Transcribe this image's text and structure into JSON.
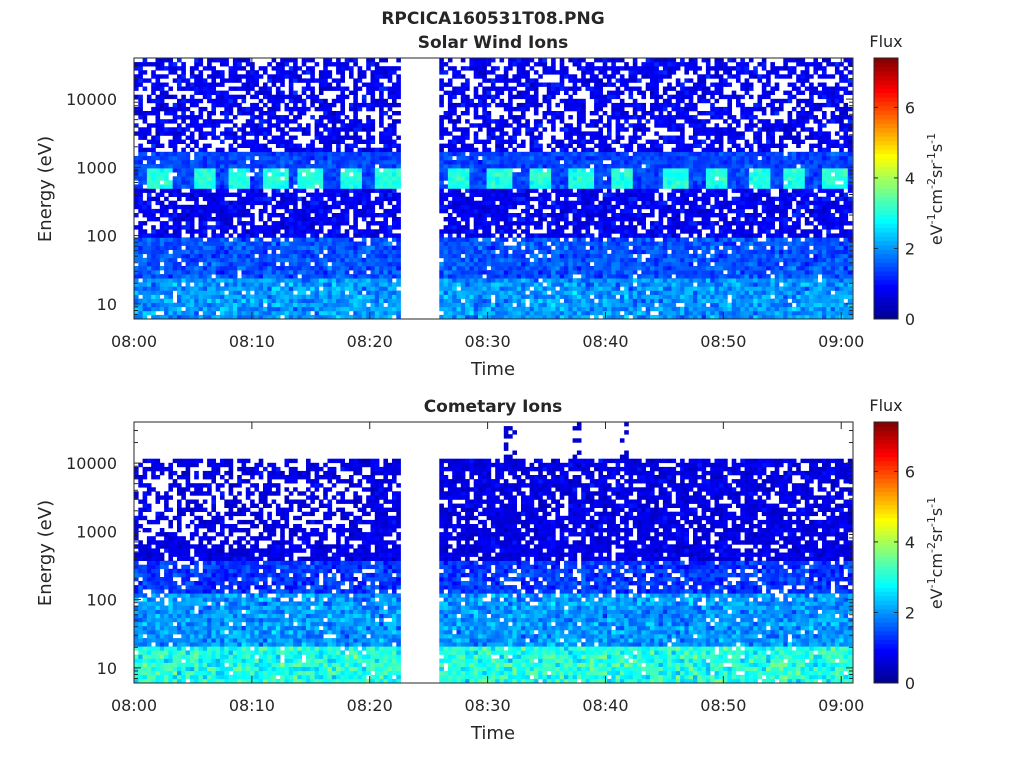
{
  "figure_title": "RPCICA160531T08.PNG",
  "colormap": [
    "#00008f",
    "#0000ff",
    "#0080ff",
    "#00ffff",
    "#80ff80",
    "#ffff00",
    "#ff8000",
    "#ff0000",
    "#800000"
  ],
  "chart_data": [
    {
      "type": "heatmap",
      "title": "Solar Wind Ions",
      "xlabel": "Time",
      "ylabel": "Energy (eV)",
      "x_tick_labels": [
        "08:00",
        "08:10",
        "08:20",
        "08:30",
        "08:40",
        "08:50",
        "09:00"
      ],
      "x_range_minutes": [
        0,
        61
      ],
      "y_scale": "log",
      "y_tick_labels": [
        "10",
        "100",
        "1000",
        "10000"
      ],
      "y_tick_values": [
        10,
        100,
        1000,
        10000
      ],
      "y_range": [
        6,
        40000
      ],
      "data_gap_minutes": [
        22.8,
        26.0
      ],
      "colorbar": {
        "title": "Flux",
        "label": "eV-1cm-2sr-1s-1",
        "tick_labels": [
          "0",
          "2",
          "4",
          "6"
        ],
        "tick_values": [
          0,
          2,
          4,
          6
        ],
        "range": [
          0,
          7.4
        ]
      },
      "features": {
        "dense_band_energy_eV": [
          500,
          900
        ],
        "band_peak_flux": 3.0,
        "background_flux": 0.8,
        "low_energy_flux": 2.0,
        "band_enhancement_minutes": [
          2.2,
          6,
          9,
          12,
          15,
          18.5,
          21.5,
          27.5,
          31,
          34.5,
          38,
          41.5,
          46,
          49.5,
          53,
          56,
          59.5
        ]
      }
    },
    {
      "type": "heatmap",
      "title": "Cometary Ions",
      "xlabel": "Time",
      "ylabel": "Energy (eV)",
      "x_tick_labels": [
        "08:00",
        "08:10",
        "08:20",
        "08:30",
        "08:40",
        "08:50",
        "09:00"
      ],
      "x_range_minutes": [
        0,
        61
      ],
      "y_scale": "log",
      "y_tick_labels": [
        "10",
        "100",
        "1000",
        "10000"
      ],
      "y_tick_values": [
        10,
        100,
        1000,
        10000
      ],
      "y_range": [
        6,
        40000
      ],
      "data_gap_minutes": [
        22.8,
        26.0
      ],
      "colorbar": {
        "title": "Flux",
        "label": "eV-1cm-2sr-1s-1",
        "tick_labels": [
          "0",
          "2",
          "4",
          "6"
        ],
        "tick_values": [
          0,
          2,
          4,
          6
        ],
        "range": [
          0,
          7.4
        ]
      },
      "features": {
        "upper_energy_cutoff_eV": 11000,
        "background_flux": 0.7,
        "low_energy_flux": 3.0,
        "high_energy_spikes_minutes": [
          32,
          37.5,
          41.5
        ]
      }
    }
  ]
}
